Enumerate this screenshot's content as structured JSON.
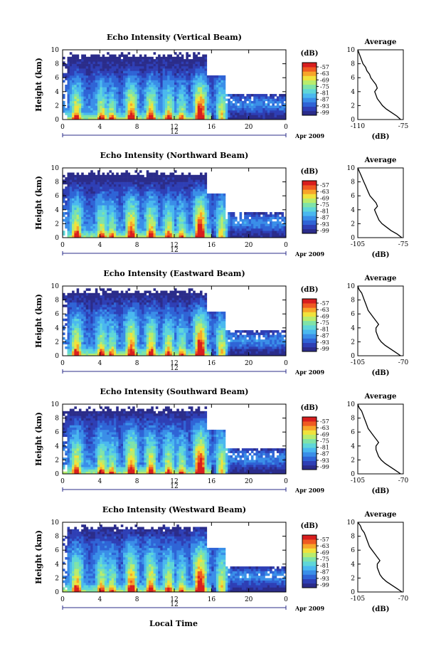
{
  "figure": {
    "xlabel_bottom": "Local Time",
    "colorbar_unit": "(dB)",
    "date_label": "Apr 2009",
    "day_marker": "12",
    "avg_ylabel": "(dB)",
    "avg_title": "Average",
    "ylabel": "Height (km)"
  },
  "chart_data": [
    {
      "type": "heatmap",
      "title": "Echo Intensity (Vertical Beam)",
      "ylabel": "Height (km)",
      "x_ticks": [
        "0",
        "4",
        "8",
        "12",
        "16",
        "20",
        "0"
      ],
      "y_ticks": [
        "0",
        "2",
        "4",
        "6",
        "8",
        "10"
      ],
      "xlim": [
        0,
        24
      ],
      "ylim": [
        0,
        10
      ],
      "colorbar": {
        "unit": "(dB)",
        "ticks": [
          "-57",
          "-63",
          "-69",
          "-75",
          "-81",
          "-87",
          "-93",
          "-99"
        ]
      },
      "average_profile": {
        "title": "Average",
        "xlabel": "(dB)",
        "x_ticks": [
          "-110",
          "-75"
        ],
        "xlim": [
          -110,
          -75
        ],
        "points": [
          [
            -77,
            0
          ],
          [
            -80,
            0.5
          ],
          [
            -84,
            1
          ],
          [
            -88,
            1.5
          ],
          [
            -91,
            2
          ],
          [
            -93,
            2.5
          ],
          [
            -95,
            3
          ],
          [
            -96,
            3.5
          ],
          [
            -97,
            4
          ],
          [
            -95,
            4.5
          ],
          [
            -96,
            5
          ],
          [
            -98,
            5.5
          ],
          [
            -100,
            6
          ],
          [
            -101,
            6.5
          ],
          [
            -103,
            7
          ],
          [
            -104,
            7.5
          ],
          [
            -106,
            8
          ],
          [
            -107,
            8.5
          ],
          [
            -108,
            9
          ],
          [
            -109,
            9.5
          ],
          [
            -110,
            10
          ]
        ]
      }
    },
    {
      "type": "heatmap",
      "title": "Echo Intensity (Northward Beam)",
      "ylabel": "Height (km)",
      "x_ticks": [
        "0",
        "4",
        "8",
        "12",
        "16",
        "20",
        "0"
      ],
      "y_ticks": [
        "0",
        "2",
        "4",
        "6",
        "8",
        "10"
      ],
      "xlim": [
        0,
        24
      ],
      "ylim": [
        0,
        10
      ],
      "colorbar": {
        "unit": "(dB)",
        "ticks": [
          "-57",
          "-63",
          "-69",
          "-75",
          "-81",
          "-87",
          "-93",
          "-99"
        ]
      },
      "average_profile": {
        "title": "Average",
        "xlabel": "(dB)",
        "x_ticks": [
          "-105",
          "-75"
        ],
        "xlim": [
          -105,
          -75
        ],
        "points": [
          [
            -76,
            0
          ],
          [
            -79,
            0.5
          ],
          [
            -83,
            1
          ],
          [
            -86,
            1.5
          ],
          [
            -89,
            2
          ],
          [
            -91,
            2.5
          ],
          [
            -92,
            3
          ],
          [
            -93,
            3.5
          ],
          [
            -94,
            4
          ],
          [
            -92,
            4.5
          ],
          [
            -93,
            5
          ],
          [
            -95,
            5.5
          ],
          [
            -97,
            6
          ],
          [
            -98,
            6.5
          ],
          [
            -99,
            7
          ],
          [
            -100,
            7.5
          ],
          [
            -101,
            8
          ],
          [
            -102,
            8.5
          ],
          [
            -103,
            9
          ],
          [
            -104,
            9.5
          ],
          [
            -105,
            10
          ]
        ]
      }
    },
    {
      "type": "heatmap",
      "title": "Echo Intensity (Eastward Beam)",
      "ylabel": "Height (km)",
      "x_ticks": [
        "0",
        "4",
        "8",
        "12",
        "16",
        "20",
        "0"
      ],
      "y_ticks": [
        "0",
        "2",
        "4",
        "6",
        "8",
        "10"
      ],
      "xlim": [
        0,
        24
      ],
      "ylim": [
        0,
        10
      ],
      "colorbar": {
        "unit": "(dB)",
        "ticks": [
          "-57",
          "-63",
          "-69",
          "-75",
          "-81",
          "-87",
          "-93",
          "-99"
        ]
      },
      "average_profile": {
        "title": "Average",
        "xlabel": "(dB)",
        "x_ticks": [
          "-105",
          "-70"
        ],
        "xlim": [
          -105,
          -70
        ],
        "points": [
          [
            -72,
            0
          ],
          [
            -76,
            0.5
          ],
          [
            -80,
            1
          ],
          [
            -84,
            1.5
          ],
          [
            -87,
            2
          ],
          [
            -89,
            2.5
          ],
          [
            -90,
            3
          ],
          [
            -91,
            3.5
          ],
          [
            -91,
            4
          ],
          [
            -89,
            4.5
          ],
          [
            -91,
            5
          ],
          [
            -93,
            5.5
          ],
          [
            -95,
            6
          ],
          [
            -97,
            6.5
          ],
          [
            -98,
            7
          ],
          [
            -99,
            7.5
          ],
          [
            -100,
            8
          ],
          [
            -101,
            8.5
          ],
          [
            -102,
            9
          ],
          [
            -104,
            9.5
          ],
          [
            -105,
            10
          ]
        ]
      }
    },
    {
      "type": "heatmap",
      "title": "Echo Intensity (Southward Beam)",
      "ylabel": "Height (km)",
      "x_ticks": [
        "0",
        "4",
        "8",
        "12",
        "16",
        "20",
        "0"
      ],
      "y_ticks": [
        "0",
        "2",
        "4",
        "6",
        "8",
        "10"
      ],
      "xlim": [
        0,
        24
      ],
      "ylim": [
        0,
        10
      ],
      "colorbar": {
        "unit": "(dB)",
        "ticks": [
          "-57",
          "-63",
          "-69",
          "-75",
          "-81",
          "-87",
          "-93",
          "-99"
        ]
      },
      "average_profile": {
        "title": "Average",
        "xlabel": "(dB)",
        "x_ticks": [
          "-105",
          "-70"
        ],
        "xlim": [
          -105,
          -70
        ],
        "points": [
          [
            -72,
            0
          ],
          [
            -76,
            0.5
          ],
          [
            -80,
            1
          ],
          [
            -84,
            1.5
          ],
          [
            -87,
            2
          ],
          [
            -89,
            2.5
          ],
          [
            -90,
            3
          ],
          [
            -91,
            3.5
          ],
          [
            -91,
            4
          ],
          [
            -89,
            4.5
          ],
          [
            -91,
            5
          ],
          [
            -93,
            5.5
          ],
          [
            -95,
            6
          ],
          [
            -97,
            6.5
          ],
          [
            -98,
            7
          ],
          [
            -99,
            7.5
          ],
          [
            -100,
            8
          ],
          [
            -101,
            8.5
          ],
          [
            -102,
            9
          ],
          [
            -104,
            9.5
          ],
          [
            -105,
            10
          ]
        ]
      }
    },
    {
      "type": "heatmap",
      "title": "Echo Intensity (Westward Beam)",
      "ylabel": "Height (km)",
      "x_ticks": [
        "0",
        "4",
        "8",
        "12",
        "16",
        "20",
        "0"
      ],
      "y_ticks": [
        "0",
        "2",
        "4",
        "6",
        "8",
        "10"
      ],
      "xlim": [
        0,
        24
      ],
      "ylim": [
        0,
        10
      ],
      "colorbar": {
        "unit": "(dB)",
        "ticks": [
          "-57",
          "-63",
          "-69",
          "-75",
          "-81",
          "-87",
          "-93",
          "-99"
        ]
      },
      "average_profile": {
        "title": "Average",
        "xlabel": "(dB)",
        "x_ticks": [
          "-105",
          "-70"
        ],
        "xlim": [
          -105,
          -70
        ],
        "points": [
          [
            -71,
            0
          ],
          [
            -75,
            0.5
          ],
          [
            -79,
            1
          ],
          [
            -83,
            1.5
          ],
          [
            -86,
            2
          ],
          [
            -88,
            2.5
          ],
          [
            -89,
            3
          ],
          [
            -90,
            3.5
          ],
          [
            -90,
            4
          ],
          [
            -88,
            4.5
          ],
          [
            -90,
            5
          ],
          [
            -92,
            5.5
          ],
          [
            -94,
            6
          ],
          [
            -96,
            6.5
          ],
          [
            -97,
            7
          ],
          [
            -98,
            7.5
          ],
          [
            -99,
            8
          ],
          [
            -100,
            8.5
          ],
          [
            -102,
            9
          ],
          [
            -103,
            9.5
          ],
          [
            -105,
            10
          ]
        ]
      }
    }
  ],
  "colors": {
    "colormap": [
      "#2b2c8a",
      "#2e3fb5",
      "#2f64d6",
      "#3a8ee8",
      "#4ab8ef",
      "#5fd6d8",
      "#7fe3a8",
      "#b9ec6d",
      "#f0e23c",
      "#f7a52a",
      "#ef5a22",
      "#d81e1e"
    ],
    "axis": "#000000"
  }
}
